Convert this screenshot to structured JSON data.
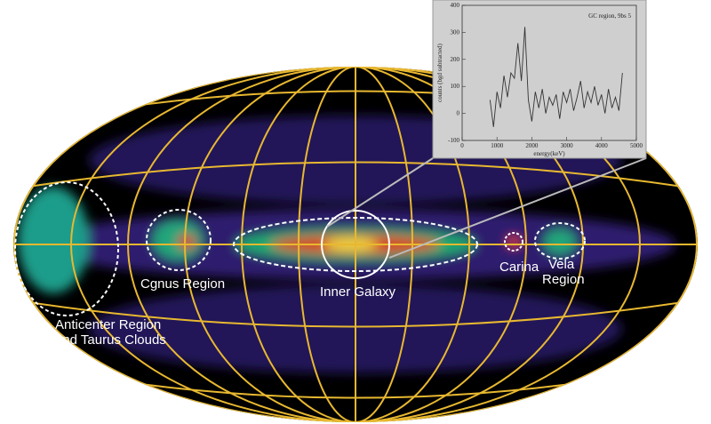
{
  "map": {
    "labels": {
      "cygnus": [
        "Cgnus Region"
      ],
      "inner": [
        "Inner Galaxy"
      ],
      "carina": [
        "Carina"
      ],
      "vela": [
        "Vela",
        "Region"
      ],
      "anticenter": [
        "Anticenter Region",
        "and Taurus Clouds"
      ]
    }
  },
  "chart_data": {
    "type": "line",
    "title": "GC region, 9bs 5",
    "x_label": "energy(keV)",
    "y_label": "counts (bgd subtracted)",
    "xlim": [
      0,
      5000
    ],
    "xticks": [
      0,
      1000,
      2000,
      3000,
      4000,
      5000
    ],
    "ylim": [
      -100,
      400
    ],
    "yticks": [
      -100,
      0,
      100,
      200,
      300,
      400
    ],
    "color": "#333333",
    "x": [
      800,
      900,
      1000,
      1100,
      1200,
      1300,
      1400,
      1500,
      1600,
      1700,
      1800,
      1900,
      2000,
      2100,
      2200,
      2300,
      2400,
      2500,
      2600,
      2700,
      2800,
      2900,
      3000,
      3100,
      3200,
      3300,
      3400,
      3500,
      3600,
      3700,
      3800,
      3900,
      4000,
      4100,
      4200,
      4300,
      4400,
      4500,
      4600
    ],
    "values": [
      50,
      -50,
      80,
      20,
      140,
      60,
      150,
      130,
      260,
      120,
      320,
      50,
      -30,
      80,
      20,
      90,
      0,
      60,
      30,
      70,
      -20,
      80,
      40,
      90,
      10,
      60,
      120,
      20,
      80,
      40,
      100,
      30,
      70,
      0,
      90,
      20,
      60,
      10,
      150
    ]
  }
}
